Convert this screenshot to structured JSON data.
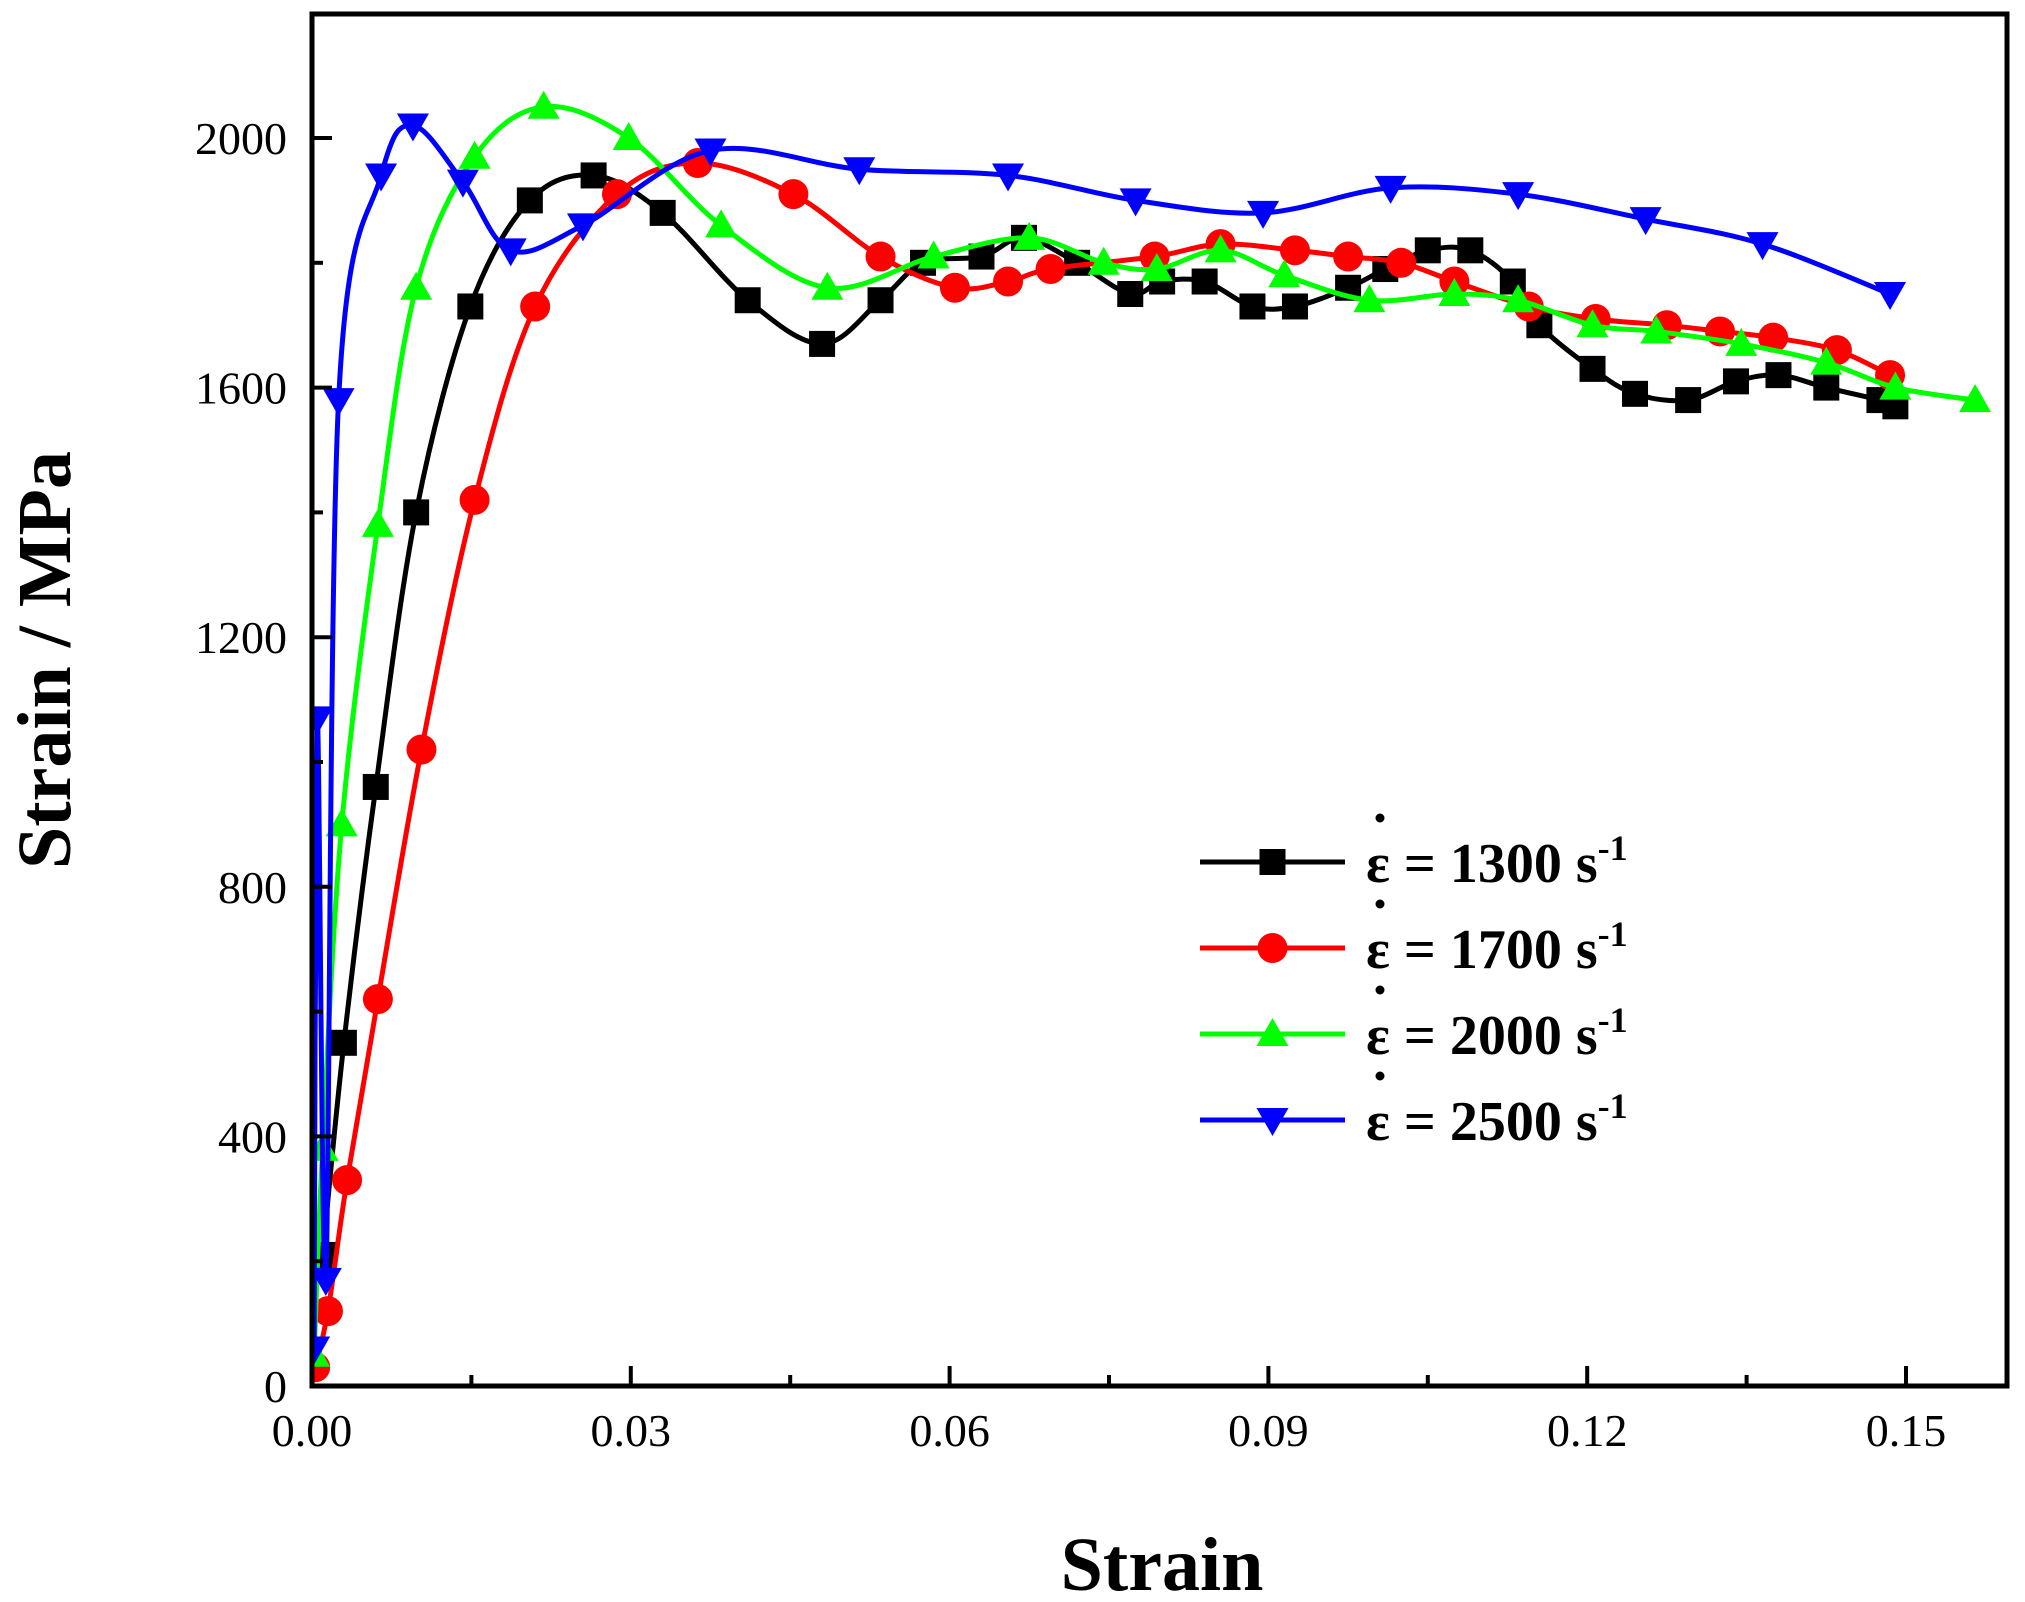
{
  "chart_data": {
    "type": "line",
    "title": "",
    "xlabel": "Strain",
    "ylabel": "Strain / MPa",
    "xlim": [
      0,
      0.16
    ],
    "ylim": [
      0,
      2200
    ],
    "xticks": [
      {
        "value": 0.0,
        "label": "0.00"
      },
      {
        "value": 0.03,
        "label": "0.03"
      },
      {
        "value": 0.06,
        "label": "0.06"
      },
      {
        "value": 0.09,
        "label": "0.09"
      },
      {
        "value": 0.12,
        "label": "0.12"
      },
      {
        "value": 0.15,
        "label": "0.15"
      }
    ],
    "yticks": [
      {
        "value": 0,
        "label": "0"
      },
      {
        "value": 400,
        "label": "400"
      },
      {
        "value": 800,
        "label": "800"
      },
      {
        "value": 1200,
        "label": "1200"
      },
      {
        "value": 1600,
        "label": "1600"
      },
      {
        "value": 2000,
        "label": "2000"
      }
    ],
    "legend_position": "center-right",
    "series": [
      {
        "name": "1300",
        "legend_prefix": "ε = ",
        "legend_rate": "1300",
        "legend_unit": " s",
        "legend_sup": "-1",
        "color": "#000000",
        "marker": "square",
        "x": [
          0.001,
          0.003,
          0.006,
          0.0098,
          0.0149,
          0.0205,
          0.0265,
          0.033,
          0.041,
          0.048,
          0.0535,
          0.0575,
          0.063,
          0.067,
          0.072,
          0.077,
          0.08,
          0.084,
          0.0885,
          0.0925,
          0.0975,
          0.101,
          0.105,
          0.109,
          0.113,
          0.1155,
          0.1205,
          0.1245,
          0.1295,
          0.134,
          0.138,
          0.1425,
          0.1475,
          0.149
        ],
        "values": [
          210,
          550,
          960,
          1400,
          1730,
          1900,
          1940,
          1880,
          1740,
          1670,
          1740,
          1800,
          1810,
          1840,
          1800,
          1750,
          1770,
          1770,
          1730,
          1730,
          1760,
          1790,
          1820,
          1820,
          1770,
          1700,
          1630,
          1590,
          1580,
          1610,
          1620,
          1600,
          1580,
          1570
        ]
      },
      {
        "name": "1700",
        "legend_prefix": "ε = ",
        "legend_rate": "1700",
        "legend_unit": " s",
        "legend_sup": "-1",
        "color": "#ff0000",
        "marker": "circle",
        "x": [
          0.0003,
          0.0015,
          0.0033,
          0.0062,
          0.0103,
          0.0153,
          0.021,
          0.0287,
          0.0363,
          0.0453,
          0.0535,
          0.0605,
          0.0655,
          0.0695,
          0.0793,
          0.0855,
          0.0925,
          0.0975,
          0.1025,
          0.1075,
          0.1145,
          0.1208,
          0.1275,
          0.1325,
          0.1375,
          0.1435,
          0.1485
        ],
        "values": [
          30,
          120,
          330,
          620,
          1020,
          1420,
          1730,
          1910,
          1960,
          1910,
          1810,
          1760,
          1770,
          1790,
          1810,
          1830,
          1820,
          1810,
          1800,
          1770,
          1730,
          1710,
          1700,
          1690,
          1680,
          1660,
          1620
        ]
      },
      {
        "name": "2000",
        "legend_prefix": "ε = ",
        "legend_rate": "2000",
        "legend_unit": " s",
        "legend_sup": "-1",
        "color": "#00ff00",
        "marker": "triangle-up",
        "x": [
          0.0002,
          0.001,
          0.0028,
          0.0062,
          0.0098,
          0.0153,
          0.0218,
          0.0298,
          0.0385,
          0.0485,
          0.0585,
          0.0675,
          0.0745,
          0.0795,
          0.0855,
          0.0915,
          0.0995,
          0.1075,
          0.1135,
          0.1205,
          0.1265,
          0.1345,
          0.1425,
          0.149,
          0.1565
        ],
        "values": [
          50,
          380,
          900,
          1380,
          1760,
          1970,
          2050,
          2000,
          1860,
          1760,
          1810,
          1840,
          1800,
          1790,
          1820,
          1780,
          1740,
          1750,
          1740,
          1700,
          1690,
          1670,
          1640,
          1600,
          1580
        ]
      },
      {
        "name": "2500",
        "legend_prefix": "ε = ",
        "legend_rate": "2500",
        "legend_unit": " s",
        "legend_sup": "-1",
        "color": "#0000ff",
        "marker": "triangle-down",
        "x": [
          0.0002,
          0.0005,
          0.0013,
          0.0025,
          0.0065,
          0.0095,
          0.0142,
          0.0187,
          0.0255,
          0.0375,
          0.0515,
          0.0655,
          0.0775,
          0.0895,
          0.1015,
          0.1135,
          0.1255,
          0.1365,
          0.1485
        ],
        "values": [
          60,
          1070,
          170,
          1580,
          1940,
          2020,
          1930,
          1820,
          1860,
          1980,
          1950,
          1940,
          1900,
          1880,
          1920,
          1910,
          1870,
          1830,
          1750
        ]
      }
    ]
  }
}
